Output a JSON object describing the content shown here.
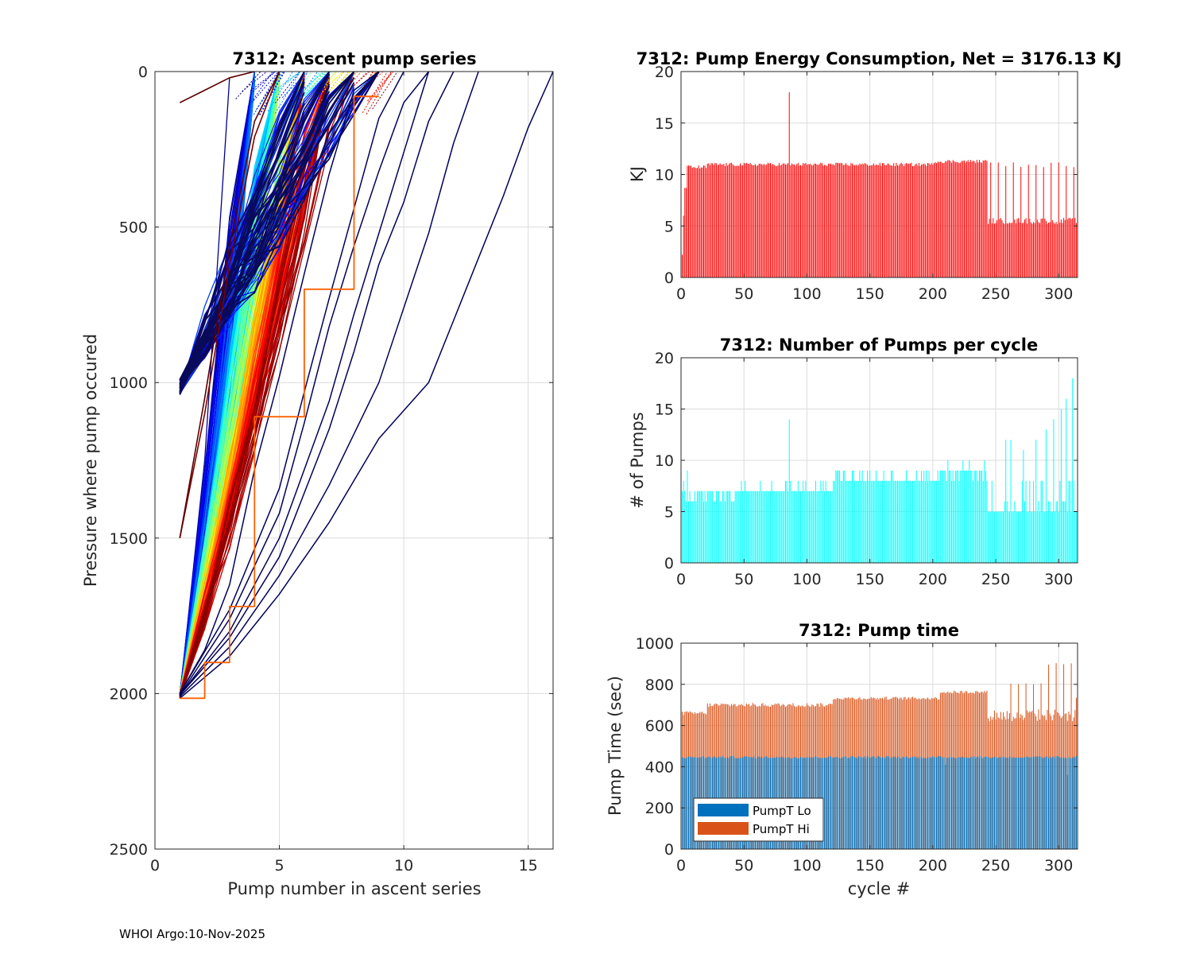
{
  "footer": "WHOI Argo:10-Nov-2025",
  "chart_data": [
    {
      "type": "line",
      "title": "7312: Ascent pump series",
      "xlabel": "Pump number in ascent series",
      "ylabel": "Pressure where pump occured",
      "xlim": [
        0,
        16
      ],
      "ylim": [
        2500,
        0
      ],
      "xticks": [
        0,
        5,
        10,
        15
      ],
      "yticks": [
        0,
        500,
        1000,
        1500,
        2000,
        2500
      ],
      "grid": true,
      "colormap": "jet by cycle",
      "series_groups": [
        {
          "start_pressure": 1000,
          "cycles": 70,
          "pumps": [
            6,
            8
          ],
          "color": "blue / dark navy"
        },
        {
          "start_pressure": 1500,
          "cycles": 2,
          "pumps": [
            4,
            5
          ],
          "color": "dark red"
        },
        {
          "start_pressure": 2000,
          "cycles": 240,
          "pumps": [
            3,
            9
          ],
          "color": "jet gradient"
        },
        {
          "start_pressure": 2000,
          "cycles": 10,
          "pumps": [
            9,
            16
          ],
          "color": "dark navy"
        }
      ],
      "highlight_series": {
        "name": "orange outlier",
        "color": "#ff6000",
        "x": [
          1,
          2,
          2,
          3,
          3,
          4,
          4,
          5,
          5,
          6,
          6,
          7,
          7,
          8,
          8,
          9
        ],
        "y": [
          2015,
          2015,
          1900,
          1900,
          1720,
          1720,
          1110,
          1110,
          1110,
          1110,
          700,
          700,
          700,
          700,
          80,
          80
        ]
      }
    },
    {
      "type": "bar",
      "title": "7312: Pump Energy Consumption,  Net = 3176.13 KJ",
      "xlabel": "",
      "ylabel": "KJ",
      "xlim": [
        0,
        315
      ],
      "ylim": [
        0,
        20
      ],
      "xticks": [
        0,
        50,
        100,
        150,
        200,
        250,
        300
      ],
      "yticks": [
        0,
        5,
        10,
        15,
        20
      ],
      "grid": true,
      "color": "#ff0000",
      "segments": [
        {
          "cycles": "1-4",
          "values_kj": [
            2.2,
            6.0,
            8.7,
            8.7
          ]
        },
        {
          "cycles": "5-20",
          "approx_kj": 10.7
        },
        {
          "cycles": "21-243",
          "approx_kj": 11.0,
          "notes": "slow rise to ~11.3 near cycle 210-240"
        },
        {
          "cycles": "86",
          "value_kj": 18.0
        },
        {
          "cycles": "244-315",
          "approx_kj": 5.5,
          "spikes_kj": 10.9,
          "spike_every_n_cycles": 6
        }
      ]
    },
    {
      "type": "bar",
      "title": "7312: Number of Pumps per cycle",
      "xlabel": "",
      "ylabel": "# of Pumps",
      "xlim": [
        0,
        315
      ],
      "ylim": [
        0,
        20
      ],
      "xticks": [
        0,
        50,
        100,
        150,
        200,
        250,
        300
      ],
      "yticks": [
        0,
        5,
        10,
        15,
        20
      ],
      "grid": true,
      "color": "#00ffff",
      "segments": [
        {
          "cycles": "1-10",
          "values": [
            7,
            8,
            7,
            6,
            9,
            6,
            7,
            6,
            6,
            6
          ]
        },
        {
          "cycles": "11-45",
          "typical": 7
        },
        {
          "cycles": "46-120",
          "typical": 7
        },
        {
          "cycles": "86",
          "value": 14
        },
        {
          "cycles": "121-205",
          "typical": 8,
          "occasional": 9
        },
        {
          "cycles": "206-243",
          "typical": 9,
          "occasional": 10
        },
        {
          "cycles": "244-315",
          "typical": 5,
          "spikes": [
            12,
            12,
            11,
            12,
            13,
            14,
            15,
            16,
            18
          ]
        }
      ]
    },
    {
      "type": "bar",
      "stacked": true,
      "title": "7312: Pump time",
      "xlabel": "cycle #",
      "ylabel": "Pump Time (sec)",
      "xlim": [
        0,
        315
      ],
      "ylim": [
        0,
        1000
      ],
      "xticks": [
        0,
        50,
        100,
        150,
        200,
        250,
        300
      ],
      "yticks": [
        0,
        200,
        400,
        600,
        800,
        1000
      ],
      "grid": true,
      "legend": {
        "position": "bottom-left",
        "entries": [
          "PumpT Lo",
          "PumpT Hi"
        ]
      },
      "series": [
        {
          "name": "PumpT Lo",
          "color": "#0072bd",
          "approx_sec": 445
        },
        {
          "name": "PumpT Hi",
          "color": "#d95319",
          "totals_approx_sec": {
            "1-20": 660,
            "21-120": 695,
            "121-205": 730,
            "206-243": 760,
            "244-315": 660
          },
          "spikes_after_250_sec": [
            800,
            800,
            800,
            850,
            880,
            895,
            895,
            895
          ]
        }
      ]
    }
  ]
}
